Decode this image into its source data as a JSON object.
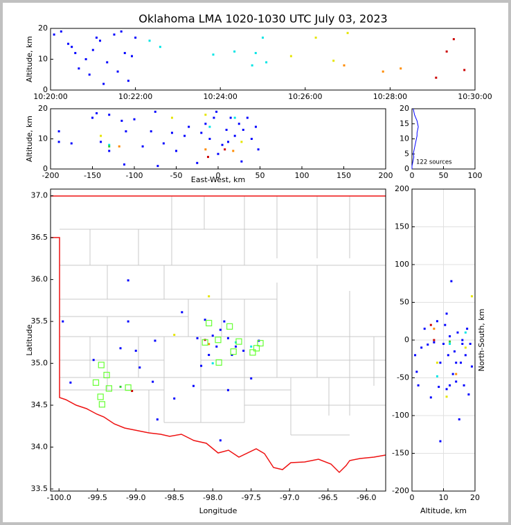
{
  "chart_data": [
    {
      "type": "scatter",
      "title": "Oklahoma LMA 1020-1030 UTC July 03, 2023",
      "ylabel": "Altitude, km",
      "xlim": [
        "10:20:00",
        "10:30:00"
      ],
      "xticks": [
        "10:20:00",
        "10:22:00",
        "10:24:00",
        "10:26:00",
        "10:28:00",
        "10:30:00"
      ],
      "ylim": [
        0,
        20
      ],
      "yticks": [
        0,
        10,
        20
      ],
      "series": [
        {
          "color": "#0000ff",
          "x": [
            "10:20:05",
            "10:20:15",
            "10:20:30",
            "10:20:40",
            "10:20:50",
            "10:21:00",
            "10:21:10",
            "10:21:20",
            "10:21:30",
            "10:21:35",
            "10:21:45",
            "10:21:50",
            "10:21:55",
            "10:22:00",
            "10:21:15",
            "10:20:25",
            "10:21:40",
            "10:20:55",
            "10:21:05",
            "10:20:35"
          ],
          "values": [
            18,
            19,
            14,
            7,
            10,
            13,
            16,
            9,
            18,
            6,
            12,
            3,
            11,
            17,
            2,
            15,
            19,
            5,
            17,
            12
          ]
        },
        {
          "color": "#00e5e5",
          "x": [
            "10:22:20",
            "10:22:35",
            "10:23:50",
            "10:24:20",
            "10:24:50",
            "10:25:00",
            "10:24:45",
            "10:25:05"
          ],
          "values": [
            16,
            14,
            11.5,
            12.5,
            12,
            17,
            8,
            9
          ]
        },
        {
          "color": "#e5e500",
          "x": [
            "10:25:40",
            "10:26:15",
            "10:27:00",
            "10:26:40"
          ],
          "values": [
            11,
            17,
            18.5,
            9.5
          ]
        },
        {
          "color": "#ff8c00",
          "x": [
            "10:26:55",
            "10:27:50",
            "10:28:15"
          ],
          "values": [
            8,
            6,
            7
          ]
        },
        {
          "color": "#cc0000",
          "x": [
            "10:29:05",
            "10:29:20",
            "10:29:30",
            "10:29:45"
          ],
          "values": [
            4,
            12.5,
            16.5,
            6.5
          ]
        }
      ]
    },
    {
      "type": "scatter",
      "ylabel": "Altitude, km",
      "xlabel": "East-West, km",
      "xlim": [
        -200,
        200
      ],
      "xticks": [
        -200,
        -150,
        -100,
        -50,
        0,
        50,
        100,
        150,
        200
      ],
      "ylim": [
        0,
        20
      ],
      "yticks": [
        0,
        10,
        20
      ],
      "series": [
        {
          "color": "#0000ff",
          "x": [
            -190,
            -190,
            -175,
            -150,
            -145,
            -140,
            -130,
            -130,
            -115,
            -112,
            -110,
            -100,
            -90,
            -80,
            -75,
            -72,
            -65,
            -55,
            -50,
            -40,
            -35,
            -25,
            -20,
            -15,
            -10,
            -5,
            0,
            5,
            10,
            15,
            20,
            25,
            28,
            35,
            45,
            48,
            -2,
            12,
            30,
            40
          ],
          "values": [
            12.5,
            9,
            8.5,
            17,
            18.5,
            9,
            18,
            6,
            16,
            1.5,
            12.5,
            16.5,
            7.5,
            12.5,
            19,
            1,
            8.5,
            12,
            6,
            11,
            14,
            2,
            12,
            15,
            10,
            17,
            5,
            8,
            13,
            17,
            11,
            15,
            2.5,
            17,
            14,
            6.5,
            19,
            9,
            13,
            10
          ]
        },
        {
          "color": "#00e5e5",
          "x": [
            -130,
            -10,
            20
          ],
          "values": [
            8,
            14,
            17
          ]
        },
        {
          "color": "#33cc33",
          "x": [
            -130
          ],
          "values": [
            7.5
          ]
        },
        {
          "color": "#e5e500",
          "x": [
            -140,
            -55,
            -15,
            28
          ],
          "values": [
            11,
            17,
            18,
            9
          ]
        },
        {
          "color": "#ff8c00",
          "x": [
            -118,
            -15,
            18
          ],
          "values": [
            7.5,
            6.5,
            6
          ]
        },
        {
          "color": "#cc0000",
          "x": [
            -12,
            8
          ],
          "values": [
            4,
            6.5
          ]
        }
      ]
    },
    {
      "type": "profile",
      "annotation": "122 sources",
      "color": "#0000ff",
      "xlim": [
        0,
        100
      ],
      "xticks": [
        0,
        50,
        100
      ],
      "ylim": [
        0,
        20
      ],
      "yticks": [
        0,
        5,
        10,
        15,
        20
      ],
      "y": [
        0,
        1,
        2,
        3,
        4,
        5,
        6,
        7,
        8,
        9,
        10,
        11,
        12,
        13,
        14,
        15,
        16,
        17,
        18,
        19,
        20
      ],
      "values": [
        0,
        0,
        1,
        2,
        3,
        2,
        3,
        4,
        5,
        6,
        7,
        8,
        8,
        9,
        10,
        9,
        8,
        6,
        4,
        3,
        2
      ]
    },
    {
      "type": "scatter",
      "xlabel": "Longitude",
      "ylabel": "Latitude",
      "xlim": [
        -100.11,
        -95.75
      ],
      "xticks": [
        {
          "value": -100,
          "label": "-100.0"
        },
        -99.5,
        {
          "value": -99,
          "label": "-99.0"
        },
        -98.5,
        {
          "value": -98,
          "label": "-98.0"
        },
        -97.5,
        {
          "value": -97,
          "label": "-97.0"
        },
        -96.5,
        {
          "value": -96,
          "label": "-96.0"
        }
      ],
      "ylim": [
        33.475,
        37.08
      ],
      "yticks": [
        33.5,
        {
          "value": 34,
          "label": "34.0"
        },
        34.5,
        {
          "value": 35,
          "label": "35.0"
        },
        35.5,
        {
          "value": 36,
          "label": "36.0"
        },
        36.5,
        {
          "value": 37,
          "label": "37.0"
        }
      ],
      "series": [
        {
          "color": "#0000ff",
          "x": [
            -99.95,
            -99.85,
            -99.55,
            -99.2,
            -99.1,
            -99.1,
            -99.0,
            -98.95,
            -98.75,
            -98.72,
            -98.5,
            -98.4,
            -98.2,
            -98.1,
            -98.05,
            -98.0,
            -97.95,
            -97.9,
            -97.85,
            -97.8,
            -97.75,
            -97.7,
            -97.6,
            -97.9,
            -97.8,
            -97.5,
            -97.4,
            -98.15,
            -98.78,
            -98.25
          ],
          "values": [
            35.5,
            34.77,
            35.04,
            35.18,
            35.99,
            35.5,
            35.15,
            34.95,
            35.27,
            34.33,
            34.58,
            35.61,
            35.3,
            35.52,
            35.1,
            35.33,
            35.2,
            35.4,
            35.5,
            35.3,
            35.1,
            35.2,
            35.15,
            34.08,
            34.68,
            34.82,
            35.27,
            34.97,
            34.78,
            34.73
          ]
        },
        {
          "color": "#00e5e5",
          "x": [
            -97.7,
            -98.0,
            -97.5
          ],
          "values": [
            35.25,
            35.0,
            35.2
          ]
        },
        {
          "color": "#33cc33",
          "x": [
            -99.2
          ],
          "values": [
            34.72
          ]
        },
        {
          "color": "#e5e500",
          "x": [
            -98.05,
            -98.5
          ],
          "values": [
            35.8,
            35.34
          ]
        },
        {
          "color": "#ff8c00",
          "x": [
            -98.05
          ],
          "values": [
            35.23
          ]
        },
        {
          "color": "#cc0000",
          "x": [
            -99.05,
            -98.1
          ],
          "values": [
            34.67,
            35.28
          ]
        },
        {
          "color": "#66ff33",
          "marker": "square-open",
          "x": [
            -99.52,
            -99.46,
            -99.44,
            -99.45,
            -99.38,
            -99.35,
            -99.1,
            -98.1,
            -98.05,
            -97.93,
            -97.92,
            -97.78,
            -97.73,
            -97.66,
            -97.48,
            -97.43,
            -97.38
          ],
          "values": [
            34.77,
            34.6,
            34.51,
            34.98,
            34.86,
            34.7,
            34.71,
            35.25,
            35.48,
            35.28,
            35.01,
            35.44,
            35.14,
            35.26,
            35.13,
            35.18,
            35.24
          ]
        }
      ]
    },
    {
      "type": "scatter",
      "xlabel": "Altitude, km",
      "ylabel": "North-South, km",
      "grid": true,
      "xlim": [
        0,
        20
      ],
      "xticks": [
        0,
        10,
        20
      ],
      "ylim": [
        -200,
        200
      ],
      "yticks": [
        -200,
        -150,
        -100,
        -50,
        0,
        50,
        100,
        150,
        200
      ],
      "series": [
        {
          "color": "#0000ff",
          "x": [
            1,
            1.5,
            2,
            3,
            4,
            5,
            6,
            7,
            8,
            8.5,
            9,
            10,
            10.5,
            11,
            11.5,
            12,
            12.5,
            13,
            13.5,
            14,
            14.5,
            15,
            15.5,
            16,
            16.5,
            17,
            17.5,
            18,
            18.5,
            19,
            12,
            9,
            14,
            16,
            11
          ],
          "values": [
            -20,
            -42,
            -60,
            -10,
            15,
            -6,
            -76,
            -3,
            25,
            -62,
            -134,
            -5,
            20,
            35,
            -20,
            5,
            78,
            -45,
            -15,
            -30,
            10,
            -105,
            -30,
            -5,
            -60,
            -20,
            15,
            -72,
            -5,
            -35,
            -60,
            -30,
            -55,
            0,
            -65
          ]
        },
        {
          "color": "#00e5e5",
          "x": [
            8,
            12,
            17
          ],
          "values": [
            -48,
            -5,
            10
          ]
        },
        {
          "color": "#33cc33",
          "x": [
            12
          ],
          "values": [
            -2
          ]
        },
        {
          "color": "#e5e500",
          "x": [
            8,
            11,
            19,
            17
          ],
          "values": [
            -30,
            -75,
            58,
            -10
          ]
        },
        {
          "color": "#ff8c00",
          "x": [
            7,
            14
          ],
          "values": [
            15,
            -45
          ]
        },
        {
          "color": "#cc0000",
          "x": [
            6,
            7
          ],
          "values": [
            20,
            0
          ]
        }
      ]
    }
  ]
}
